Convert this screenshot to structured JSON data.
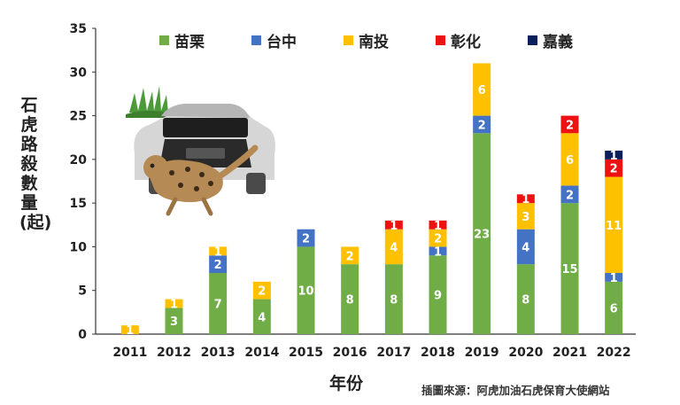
{
  "chart_data": {
    "type": "bar",
    "stacked": true,
    "categories": [
      "2011",
      "2012",
      "2013",
      "2014",
      "2015",
      "2016",
      "2017",
      "2018",
      "2019",
      "2020",
      "2021",
      "2022"
    ],
    "series": [
      {
        "name": "苗栗",
        "color": "#70ad47",
        "values": [
          0,
          3,
          7,
          4,
          10,
          8,
          8,
          9,
          23,
          8,
          15,
          6
        ]
      },
      {
        "name": "台中",
        "color": "#4472c4",
        "values": [
          0,
          0,
          2,
          0,
          2,
          0,
          0,
          1,
          2,
          4,
          2,
          1
        ]
      },
      {
        "name": "南投",
        "color": "#ffc000",
        "values": [
          1,
          1,
          1,
          2,
          0,
          2,
          4,
          2,
          6,
          3,
          6,
          11
        ]
      },
      {
        "name": "彰化",
        "color": "#ee1111",
        "values": [
          0,
          0,
          0,
          0,
          0,
          0,
          1,
          1,
          0,
          1,
          2,
          2
        ]
      },
      {
        "name": "嘉義",
        "color": "#0b1f5c",
        "values": [
          0,
          0,
          0,
          0,
          0,
          0,
          0,
          0,
          0,
          0,
          0,
          1
        ]
      }
    ],
    "ylabel": "石虎路殺數量(起)",
    "xlabel": "年份",
    "ylim": [
      0,
      35
    ],
    "yticks": [
      0,
      5,
      10,
      15,
      20,
      25,
      30,
      35
    ],
    "grid": false,
    "legend_position": "top",
    "show_labels_min": 1
  },
  "source_text": "插圖來源：阿虎加油石虎保育大使網站",
  "illustration": {
    "icons": [
      "car-icon",
      "leopard-cat-icon",
      "grass-icon"
    ]
  }
}
